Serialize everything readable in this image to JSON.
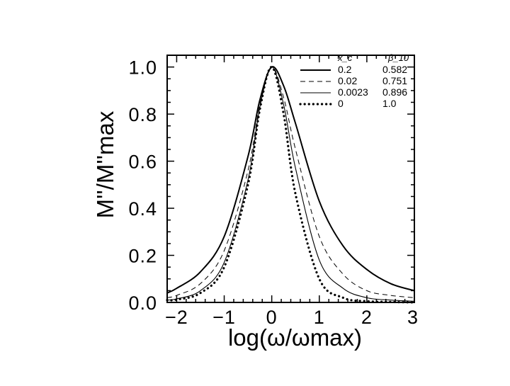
{
  "chart_data": {
    "type": "line",
    "title": "",
    "xlabel": "log(ω/ωmax)",
    "ylabel": "M''/M''max",
    "xlim": [
      -2.2,
      3
    ],
    "ylim": [
      0,
      1.05
    ],
    "x_ticks": [
      "−2",
      "−1",
      "0",
      "1",
      "2",
      "3"
    ],
    "y_ticks": [
      "0.0",
      "0.2",
      "0.4",
      "0.6",
      "0.8",
      "1.0"
    ],
    "legend": {
      "position": "top-right",
      "header_left": "x_c",
      "header_right": "β_10",
      "entries": [
        {
          "style": "solid",
          "xc": "0.2",
          "beta": "0.582"
        },
        {
          "style": "dashed",
          "xc": "0.02",
          "beta": "0.751"
        },
        {
          "style": "solid-thin",
          "xc": "0.0023",
          "beta": "0.896"
        },
        {
          "style": "dotted",
          "xc": "0",
          "beta": "1.0"
        }
      ]
    },
    "series": [
      {
        "style": "solid",
        "x": [
          -2.2,
          -2.0,
          -1.5,
          -1.0,
          -0.5,
          -0.25,
          0.0,
          0.25,
          0.5,
          1.0,
          1.5,
          2.0,
          2.5,
          3.0
        ],
        "values": [
          0.04,
          0.06,
          0.13,
          0.28,
          0.62,
          0.86,
          1.0,
          0.92,
          0.76,
          0.43,
          0.24,
          0.14,
          0.08,
          0.05
        ]
      },
      {
        "style": "dashed",
        "x": [
          -2.2,
          -2.0,
          -1.5,
          -1.0,
          -0.5,
          -0.25,
          0.0,
          0.25,
          0.5,
          1.0,
          1.5,
          2.0,
          2.5,
          3.0
        ],
        "values": [
          0.02,
          0.03,
          0.08,
          0.22,
          0.56,
          0.84,
          1.0,
          0.87,
          0.65,
          0.28,
          0.12,
          0.05,
          0.03,
          0.02
        ]
      },
      {
        "style": "solid-thin",
        "x": [
          -2.2,
          -2.0,
          -1.5,
          -1.0,
          -0.5,
          -0.25,
          0.0,
          0.25,
          0.5,
          1.0,
          1.5,
          2.0,
          2.5,
          3.0
        ],
        "values": [
          0.01,
          0.015,
          0.05,
          0.17,
          0.52,
          0.83,
          1.0,
          0.84,
          0.57,
          0.18,
          0.06,
          0.02,
          0.01,
          0.005
        ]
      },
      {
        "style": "dotted",
        "x": [
          -2.2,
          -2.0,
          -1.5,
          -1.0,
          -0.5,
          -0.25,
          0.0,
          0.25,
          0.5,
          1.0,
          1.5,
          2.0,
          2.5,
          3.0
        ],
        "values": [
          0.01,
          0.012,
          0.04,
          0.15,
          0.5,
          0.82,
          1.0,
          0.8,
          0.46,
          0.1,
          0.02,
          0.005,
          0.002,
          0.0
        ]
      }
    ]
  }
}
